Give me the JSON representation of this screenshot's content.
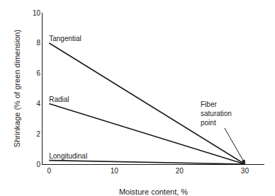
{
  "chart_data": {
    "type": "line",
    "xlabel": "Moisture content, %",
    "ylabel": "Shrinkage (% of green dimension)",
    "xlim": [
      -1,
      33
    ],
    "ylim": [
      0,
      10
    ],
    "xticks": [
      0,
      10,
      20,
      30
    ],
    "yticks": [
      0,
      2,
      4,
      6,
      8,
      10
    ],
    "grid": false,
    "color": "#1a1a1a",
    "series": [
      {
        "name": "Tangential",
        "color": "#1a1a1a",
        "x": [
          0,
          30
        ],
        "values": [
          8.0,
          0
        ]
      },
      {
        "name": "Radial",
        "color": "#1a1a1a",
        "x": [
          0,
          30
        ],
        "values": [
          4.0,
          0
        ]
      },
      {
        "name": "Longitudinal",
        "color": "#1a1a1a",
        "x": [
          0,
          30
        ],
        "values": [
          0.25,
          0
        ]
      }
    ],
    "annotations": [
      {
        "text": "Fiber\nsaturation\npoint",
        "x": 30,
        "y": 0.05
      }
    ]
  }
}
